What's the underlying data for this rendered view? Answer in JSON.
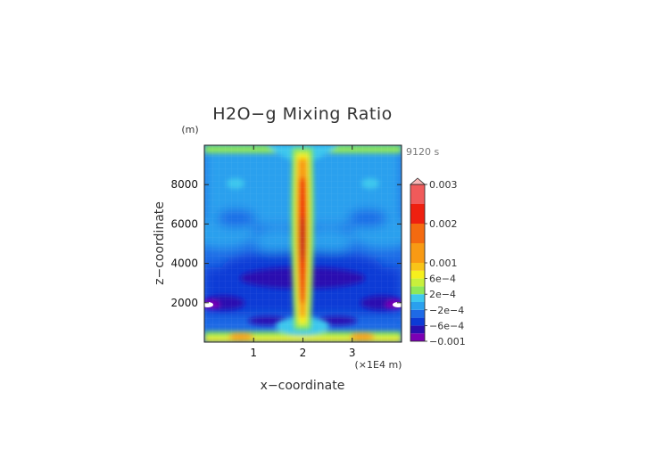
{
  "chart_data": {
    "type": "heatmap",
    "title": "H2O−g Mixing Ratio",
    "xlabel": "x−coordinate",
    "ylabel": "z−coordinate",
    "x_unit": "(×1E4 m)",
    "y_unit": "(m)",
    "time_label": "9120 s",
    "xlim": [
      0,
      4
    ],
    "ylim": [
      0,
      10000
    ],
    "x_ticks": [
      {
        "value": 1,
        "label": "1"
      },
      {
        "value": 2,
        "label": "2"
      },
      {
        "value": 3,
        "label": "3"
      }
    ],
    "y_ticks": [
      {
        "value": 2000,
        "label": "2000"
      },
      {
        "value": 4000,
        "label": "4000"
      },
      {
        "value": 6000,
        "label": "6000"
      },
      {
        "value": 8000,
        "label": "8000"
      }
    ],
    "colorbar": {
      "levels": [
        {
          "value": -0.001,
          "color": "#7b00b4"
        },
        {
          "value": -0.0008,
          "color": "#2a0fb0"
        },
        {
          "value": -0.0006,
          "color": "#0c3bd6"
        },
        {
          "value": -0.0004,
          "color": "#1e6ae6"
        },
        {
          "value": -0.0002,
          "color": "#2aa0ee"
        },
        {
          "value": 0,
          "color": "#3ec8ee"
        },
        {
          "value": 0.0002,
          "color": "#8ee85a"
        },
        {
          "value": 0.0004,
          "color": "#c8f03c"
        },
        {
          "value": 0.0006,
          "color": "#f6f01e"
        },
        {
          "value": 0.0008,
          "color": "#f8c418"
        },
        {
          "value": 0.001,
          "color": "#f89a14"
        },
        {
          "value": 0.0015,
          "color": "#f46a10"
        },
        {
          "value": 0.002,
          "color": "#ee2010"
        },
        {
          "value": 0.0025,
          "color": "#f05a5a"
        },
        {
          "value": 0.003,
          "color": "#f8b4b4"
        }
      ],
      "labels": [
        {
          "value": 0.003,
          "label": "0.003"
        },
        {
          "value": 0.002,
          "label": "0.002"
        },
        {
          "value": 0.001,
          "label": "0.001"
        },
        {
          "value": 0.0006,
          "label": "6e−4"
        },
        {
          "value": 0.0002,
          "label": "2e−4"
        },
        {
          "value": -0.0002,
          "label": "−2e−4"
        },
        {
          "value": -0.0006,
          "label": "−6e−4"
        },
        {
          "value": -0.001,
          "label": "−0.001"
        }
      ]
    }
  }
}
